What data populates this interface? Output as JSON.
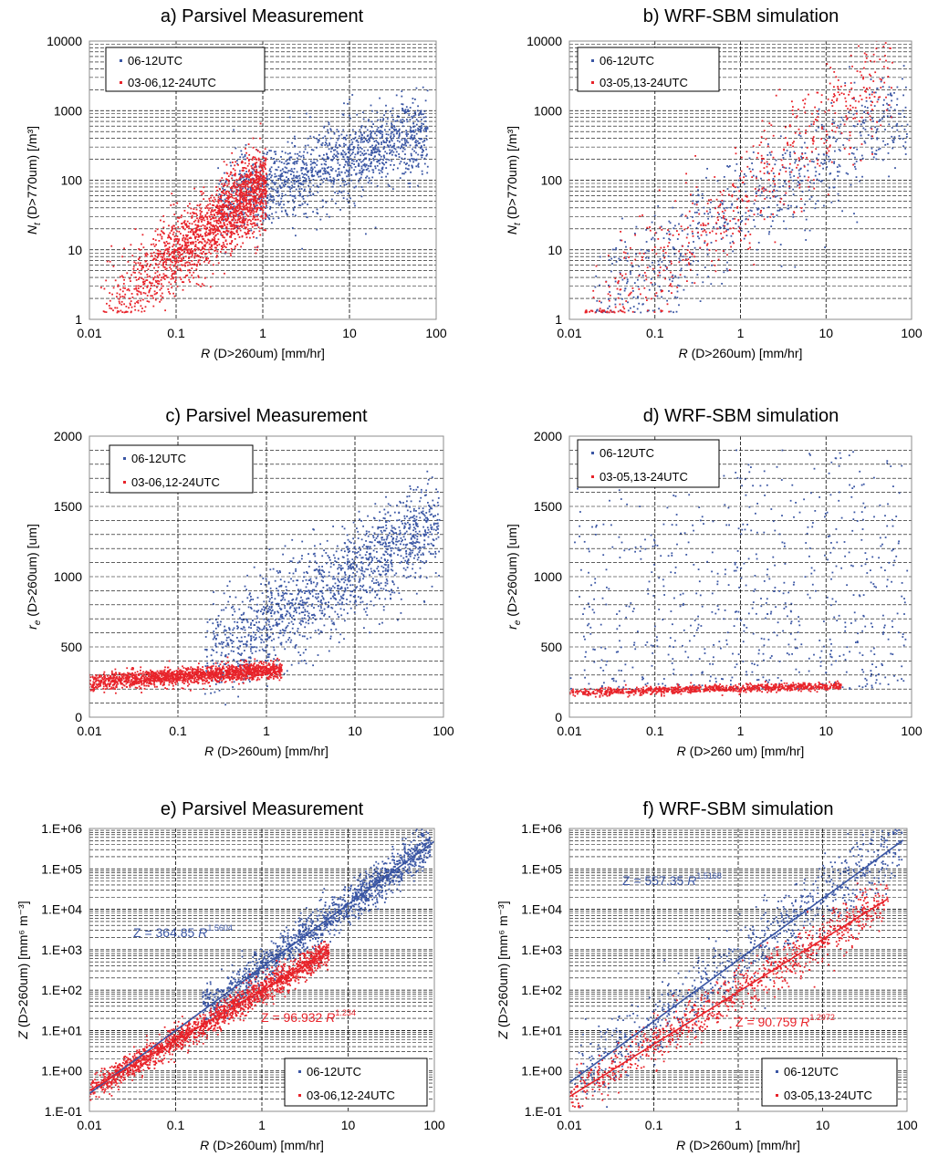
{
  "colors": {
    "series_a": "#3a56a4",
    "series_b": "#e8232a",
    "grid": "#000000",
    "frame": "#8c8c8c"
  },
  "chart_data": [
    {
      "id": "a",
      "type": "scatter",
      "title": "a) Parsivel Measurement",
      "xlabel_var": "R",
      "xlabel_rest": " (D>260um) [mm/hr]",
      "ylabel_var": "N",
      "ylabel_sub": "t",
      "ylabel_rest": " (D>770um) [/m³]",
      "x_scale": "log",
      "xlim": [
        0.01,
        100
      ],
      "y_scale": "log",
      "ylim": [
        1,
        10000
      ],
      "x_ticks": [
        "0.01",
        "0.1",
        "1",
        "10",
        "100"
      ],
      "y_ticks": [
        "1",
        "10",
        "100",
        "1000",
        "10000"
      ],
      "grid": "dashed",
      "legend": "top-left",
      "series": [
        {
          "name": "06-12UTC",
          "color": "#3a56a4",
          "trend": {
            "type": "power",
            "a": 80,
            "b": 0.42,
            "x_range": [
              0.3,
              80
            ],
            "spread": 0.28,
            "n": 1400
          }
        },
        {
          "name": "03-06,12-24UTC",
          "color": "#e8232a",
          "trend": {
            "type": "power",
            "a": 85,
            "b": 0.97,
            "x_range": [
              0.012,
              1.1
            ],
            "spread": 0.28,
            "n": 1800
          }
        }
      ]
    },
    {
      "id": "b",
      "type": "scatter",
      "title": "b) WRF-SBM simulation",
      "xlabel_var": "R",
      "xlabel_rest": " (D>260um) [mm/hr]",
      "ylabel_var": "N",
      "ylabel_sub": "t",
      "ylabel_rest": " (D>770um) [/m³]",
      "x_scale": "log",
      "xlim": [
        0.01,
        100
      ],
      "y_scale": "log",
      "ylim": [
        1,
        10000
      ],
      "x_ticks": [
        "0.01",
        "0.1",
        "1",
        "10",
        "100"
      ],
      "y_ticks": [
        "1",
        "10",
        "100",
        "1000",
        "10000"
      ],
      "grid": "dashed",
      "legend": "top-left",
      "series": [
        {
          "name": "06-12UTC",
          "color": "#3a56a4",
          "trend": {
            "type": "power",
            "a": 35,
            "b": 0.75,
            "x_range": [
              0.02,
              90
            ],
            "spread": 0.38,
            "n": 700
          }
        },
        {
          "name": "03-05,13-24UTC",
          "color": "#e8232a",
          "trend": {
            "type": "power",
            "a": 55,
            "b": 1.0,
            "x_range": [
              0.015,
              60
            ],
            "spread": 0.42,
            "n": 600
          }
        }
      ]
    },
    {
      "id": "c",
      "type": "scatter",
      "title": "c) Parsivel Measurement",
      "xlabel_var": "R",
      "xlabel_rest": " (D>260um) [mm/hr]",
      "ylabel_var": "r",
      "ylabel_sub": "e",
      "ylabel_rest": " (D>260um) [um]",
      "x_scale": "log",
      "xlim": [
        0.01,
        100
      ],
      "y_scale": "linear",
      "ylim": [
        0,
        2000
      ],
      "x_ticks": [
        "0.01",
        "0.1",
        "1",
        "10",
        "100"
      ],
      "y_ticks": [
        "0",
        "500",
        "1000",
        "1500",
        "2000"
      ],
      "grid": "dashed",
      "legend": "top-left",
      "series": [
        {
          "name": "06-12UTC",
          "color": "#3a56a4",
          "trend": {
            "type": "loglinear",
            "r0": 680,
            "slope": 360,
            "x_range": [
              0.2,
              90
            ],
            "spread": 170,
            "n": 1500
          }
        },
        {
          "name": "03-06,12-24UTC",
          "color": "#e8232a",
          "trend": {
            "type": "loglinear",
            "r0": 330,
            "slope": 40,
            "x_range": [
              0.01,
              1.5
            ],
            "spread": 30,
            "n": 1700
          }
        }
      ]
    },
    {
      "id": "d",
      "type": "scatter",
      "title": "d) WRF-SBM simulation",
      "xlabel_var": "R",
      "xlabel_rest": " (D>260 um) [mm/hr]",
      "ylabel_var": "r",
      "ylabel_sub": "e",
      "ylabel_rest": " (D>260um) [um]",
      "x_scale": "log",
      "xlim": [
        0.01,
        100
      ],
      "y_scale": "linear",
      "ylim": [
        0,
        2000
      ],
      "x_ticks": [
        "0.01",
        "0.1",
        "1",
        "10",
        "100"
      ],
      "y_ticks": [
        "0",
        "500",
        "1000",
        "1500",
        "2000"
      ],
      "grid": "dashed",
      "legend": "top-left",
      "series": [
        {
          "name": "06-12UTC",
          "color": "#3a56a4",
          "trend": {
            "type": "uniform",
            "x_range": [
              0.01,
              90
            ],
            "y_range": [
              200,
              1900
            ],
            "n": 700
          }
        },
        {
          "name": "03-05,13-24UTC",
          "color": "#e8232a",
          "trend": {
            "type": "loglinear",
            "r0": 205,
            "slope": 15,
            "x_range": [
              0.01,
              15
            ],
            "spread": 14,
            "n": 900
          }
        }
      ]
    },
    {
      "id": "e",
      "type": "scatter",
      "title": "e) Parsivel Measurement",
      "xlabel_var": "R",
      "xlabel_rest": " (D>260um) [mm/hr]",
      "ylabel_var": "Z",
      "ylabel_rest": " (D>260um) [mm⁶ m⁻³]",
      "x_scale": "log",
      "xlim": [
        0.01,
        100
      ],
      "y_scale": "log",
      "ylim": [
        0.1,
        1000000
      ],
      "x_ticks": [
        "0.01",
        "0.1",
        "1",
        "10",
        "100"
      ],
      "y_ticks": [
        "1.E-01",
        "1.E+00",
        "1.E+01",
        "1.E+02",
        "1.E+03",
        "1.E+04",
        "1.E+05",
        "1.E+06"
      ],
      "grid": "dashed",
      "legend": "bottom-right",
      "series": [
        {
          "name": "06-12UTC",
          "color": "#3a56a4",
          "fit": {
            "a": 364.85,
            "b": 1.5604,
            "label_prefix": "Z = 364.85 ",
            "label_var": "R",
            "label_exp": "1.5604",
            "x_range": [
              0.01,
              100
            ]
          },
          "trend": {
            "type": "power",
            "a": 364.85,
            "b": 1.5604,
            "x_range": [
              0.2,
              90
            ],
            "spread": 0.25,
            "n": 1400
          }
        },
        {
          "name": "03-06,12-24UTC",
          "color": "#e8232a",
          "fit": {
            "a": 96.932,
            "b": 1.234,
            "label_prefix": "Z = 96.932 ",
            "label_var": "R",
            "label_exp": "1.234",
            "x_range": [
              0.01,
              6
            ]
          },
          "trend": {
            "type": "power",
            "a": 96.932,
            "b": 1.234,
            "x_range": [
              0.01,
              6
            ],
            "spread": 0.17,
            "n": 1800
          }
        }
      ]
    },
    {
      "id": "f",
      "type": "scatter",
      "title": "f) WRF-SBM simulation",
      "xlabel_var": "R",
      "xlabel_rest": " (D>260um) [mm/hr]",
      "ylabel_var": "Z",
      "ylabel_rest": " (D>260um) [mm⁶ m⁻³]",
      "x_scale": "log",
      "xlim": [
        0.01,
        100
      ],
      "y_scale": "log",
      "ylim": [
        0.1,
        1000000
      ],
      "x_ticks": [
        "0.01",
        "0.1",
        "1",
        "10",
        "100"
      ],
      "y_ticks": [
        "1.E-01",
        "1.E+00",
        "1.E+01",
        "1.E+02",
        "1.E+03",
        "1.E+04",
        "1.E+05",
        "1.E+06"
      ],
      "grid": "dashed",
      "legend": "bottom-right",
      "series": [
        {
          "name": "06-12UTC",
          "color": "#3a56a4",
          "fit": {
            "a": 557.35,
            "b": 1.5168,
            "label_prefix": "Z = 557.35 ",
            "label_var": "R",
            "label_exp": "1.5168",
            "x_range": [
              0.01,
              90
            ]
          },
          "trend": {
            "type": "power",
            "a": 557.35,
            "b": 1.5168,
            "x_range": [
              0.01,
              90
            ],
            "spread": 0.45,
            "n": 800
          }
        },
        {
          "name": "03-05,13-24UTC",
          "color": "#e8232a",
          "fit": {
            "a": 90.759,
            "b": 1.2972,
            "label_prefix": "Z = 90.759 ",
            "label_var": "R",
            "label_exp": "1.2972",
            "x_range": [
              0.01,
              60
            ]
          },
          "trend": {
            "type": "power",
            "a": 90.759,
            "b": 1.2972,
            "x_range": [
              0.01,
              60
            ],
            "spread": 0.3,
            "n": 900
          }
        }
      ]
    }
  ]
}
